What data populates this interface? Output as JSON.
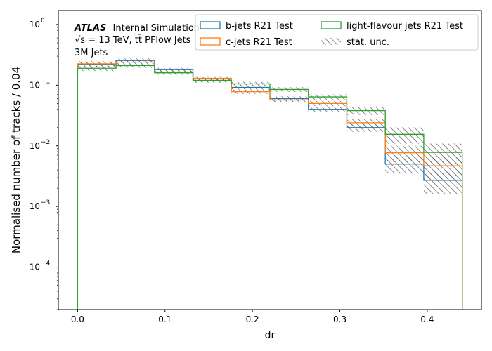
{
  "chart_data": {
    "type": "histogram-step",
    "xlabel": "dr",
    "ylabel": "Normalised number of tracks / 0.04",
    "xlim": [
      -0.022,
      0.462
    ],
    "ylim": [
      2e-05,
      1.7
    ],
    "yscale": "log",
    "x_ticks": [
      0.0,
      0.1,
      0.2,
      0.3,
      0.4
    ],
    "x_tick_labels": [
      "0.0",
      "0.1",
      "0.2",
      "0.3",
      "0.4"
    ],
    "y_ticks": [
      0.0001,
      0.001,
      0.01,
      0.1,
      1
    ],
    "y_tick_labels": [
      {
        "base": "10",
        "exp": "−4"
      },
      {
        "base": "10",
        "exp": "−3"
      },
      {
        "base": "10",
        "exp": "−2"
      },
      {
        "base": "10",
        "exp": "−1"
      },
      {
        "base": "10",
        "exp": "0"
      }
    ],
    "bin_edges": [
      0.0,
      0.044,
      0.088,
      0.132,
      0.176,
      0.22,
      0.264,
      0.308,
      0.352,
      0.396,
      0.44
    ],
    "series": [
      {
        "name": "b-jets R21 Test",
        "color": "#1f77b4",
        "values": [
          0.22,
          0.255,
          0.18,
          0.12,
          0.092,
          0.06,
          0.04,
          0.02,
          0.005,
          0.0027
        ]
      },
      {
        "name": "c-jets R21 Test",
        "color": "#ff7f0e",
        "values": [
          0.225,
          0.24,
          0.165,
          0.13,
          0.078,
          0.057,
          0.05,
          0.024,
          0.0077,
          0.0047
        ]
      },
      {
        "name": "light-flavour jets R21 Test",
        "color": "#2ca02c",
        "values": [
          0.19,
          0.21,
          0.16,
          0.12,
          0.105,
          0.085,
          0.064,
          0.038,
          0.0155,
          0.0078
        ]
      }
    ],
    "stat_unc_rel": [
      0.1,
      0.08,
      0.07,
      0.08,
      0.08,
      0.09,
      0.1,
      0.15,
      0.3,
      0.4
    ],
    "legend": {
      "placement": "top-right",
      "stat_label": "stat. unc."
    },
    "annotation": {
      "atlas": "ATLAS",
      "atlas_suffix": "Internal Simulation",
      "line2": "√s = 13 TeV, tt̄ PFlow Jets",
      "line3": "3M Jets"
    }
  }
}
